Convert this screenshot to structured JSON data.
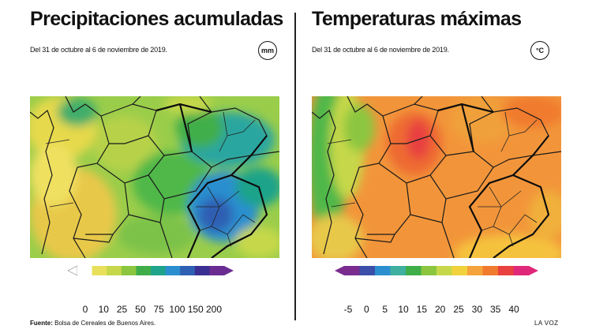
{
  "left_panel": {
    "title": "Precipitaciones acumuladas",
    "subtitle": "Del 31 de octubre al 6 de noviembre de 2019.",
    "unit": "mm",
    "legend_colors": [
      "#ffffff",
      "#e8e05a",
      "#c6d84a",
      "#8cc63f",
      "#3fae49",
      "#1fa38a",
      "#2b8fcf",
      "#2f5fb3",
      "#3b2f91",
      "#6a2c91"
    ],
    "legend_ticks": [
      "0",
      "10",
      "25",
      "50",
      "75",
      "100",
      "150",
      "200"
    ]
  },
  "right_panel": {
    "title": "Temperaturas máximas",
    "subtitle": "Del 31 de octubre al 6 de noviembre de 2019.",
    "unit": "°C",
    "legend_colors": [
      "#7a2c8f",
      "#3b4fa8",
      "#2b8fcf",
      "#3fb0a0",
      "#3fae49",
      "#8cc63f",
      "#c6d84a",
      "#f2d23c",
      "#f5a33a",
      "#f07a2e",
      "#e8413f",
      "#e0287a"
    ],
    "legend_ticks": [
      "-5",
      "0",
      "5",
      "10",
      "15",
      "20",
      "25",
      "30",
      "35",
      "40"
    ]
  },
  "footer": {
    "source_label": "Fuente:",
    "source_text": "Bolsa de Cereales de Buenos Aires.",
    "brand": "LA VOZ"
  }
}
